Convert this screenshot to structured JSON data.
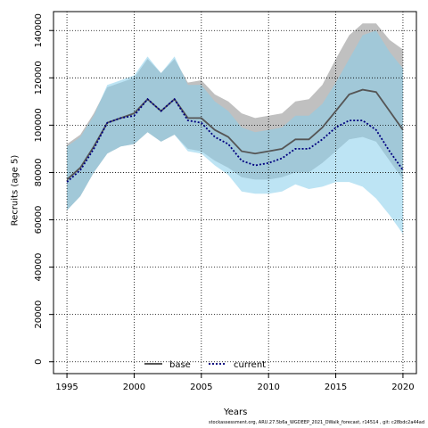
{
  "chart_data": {
    "type": "area",
    "title": "",
    "xlabel": "Years",
    "ylabel": "Recruits (age 5)",
    "xlim": [
      1994,
      2021
    ],
    "ylim": [
      -5000,
      148000
    ],
    "x_ticks": [
      1995,
      2000,
      2005,
      2010,
      2015,
      2020
    ],
    "y_ticks": [
      0,
      20000,
      40000,
      60000,
      80000,
      100000,
      120000,
      140000
    ],
    "grid": true,
    "legend_position": "bottom-center",
    "x": [
      1995,
      1996,
      1997,
      1998,
      1999,
      2000,
      2001,
      2002,
      2003,
      2004,
      2005,
      2006,
      2007,
      2008,
      2009,
      2010,
      2011,
      2012,
      2013,
      2014,
      2015,
      2016,
      2017,
      2018,
      2019,
      2020
    ],
    "series": [
      {
        "name": "base",
        "color": "#555555",
        "line_style": "solid",
        "band_color": "#8c8c8c",
        "values": [
          77000,
          82000,
          91000,
          101000,
          103000,
          105000,
          111000,
          106000,
          111000,
          103000,
          103000,
          98000,
          95000,
          89000,
          88000,
          89000,
          90000,
          94000,
          94000,
          99000,
          106000,
          113000,
          115000,
          114000,
          106000,
          98000
        ],
        "lower": [
          64000,
          70000,
          80000,
          88000,
          91000,
          92000,
          97000,
          93000,
          96000,
          90000,
          89000,
          85000,
          82000,
          78000,
          77000,
          77000,
          78000,
          80000,
          80000,
          84000,
          89000,
          94000,
          95000,
          93000,
          85000,
          77000
        ],
        "upper": [
          92000,
          96000,
          105000,
          116000,
          118000,
          120000,
          128000,
          122000,
          128000,
          118000,
          119000,
          113000,
          110000,
          105000,
          103000,
          104000,
          105000,
          110000,
          111000,
          117000,
          128000,
          138000,
          143000,
          143000,
          136000,
          132000
        ]
      },
      {
        "name": "current",
        "color": "#000080",
        "line_style": "dotted",
        "band_color": "#87ceeb",
        "values": [
          76000,
          81000,
          90000,
          101000,
          103000,
          104000,
          111000,
          106000,
          111000,
          102000,
          101000,
          95000,
          92000,
          85000,
          83000,
          84000,
          86000,
          90000,
          90000,
          94000,
          99000,
          102000,
          102000,
          98000,
          89000,
          81000
        ],
        "lower": [
          64000,
          70000,
          80000,
          88000,
          91000,
          92000,
          97000,
          93000,
          96000,
          89000,
          88000,
          83000,
          79000,
          72000,
          71000,
          71000,
          72000,
          75000,
          73000,
          74000,
          76000,
          76000,
          74000,
          69000,
          62000,
          54000
        ],
        "upper": [
          91000,
          95000,
          104000,
          117000,
          119000,
          121000,
          129000,
          122000,
          129000,
          117000,
          117000,
          110000,
          106000,
          99000,
          97000,
          98000,
          99000,
          104000,
          104000,
          109000,
          118000,
          128000,
          138000,
          140000,
          131000,
          124000
        ]
      }
    ]
  },
  "footnote": "stockassessment.org, ARU.27.5b6a_WGDEEP_2021_DWalk_forecast, r14514 , git: c28bdc2a44ad"
}
